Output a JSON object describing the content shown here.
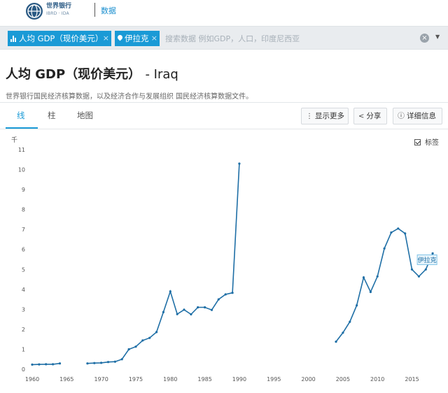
{
  "header": {
    "logo_text": "世界银行",
    "logo_sub": "IBRD · IDA",
    "nav_label": "数据"
  },
  "search": {
    "chips": [
      {
        "label": "人均 GDP（现价美元）",
        "remove": "×"
      },
      {
        "label": "伊拉克",
        "remove": "×"
      }
    ],
    "placeholder": "搜索数据 例如GDP，人口，印度尼西亚",
    "clear": "×",
    "caret": "▼"
  },
  "page": {
    "title": "人均 GDP（现价美元）",
    "country_suffix": "- Iraq",
    "subtitle": "世界银行国民经济核算数据，以及经济合作与发展组织 国民经济核算数据文件。"
  },
  "tabs": [
    {
      "label": "线",
      "active": true
    },
    {
      "label": "柱",
      "active": false
    },
    {
      "label": "地图",
      "active": false
    }
  ],
  "toolbar": {
    "more_icon": "⋮",
    "more_label": "显示更多",
    "share_icon": "<",
    "share_label": "分享",
    "info_icon": "ⓘ",
    "info_label": "详细信息"
  },
  "chart_controls": {
    "label_toggle": "标签",
    "label_checked": true
  },
  "colors": {
    "accent": "#1a9ad6",
    "series": "#1f6fa6"
  },
  "chart_data": {
    "type": "line",
    "unit_label": "千",
    "ylim": [
      0,
      11
    ],
    "yticks": [
      "0",
      "1",
      "2",
      "3",
      "4",
      "5",
      "6",
      "7",
      "8",
      "9",
      "10",
      "11"
    ],
    "xlim": [
      1960,
      2019
    ],
    "xticks": [
      "1960",
      "1965",
      "1970",
      "1975",
      "1980",
      "1985",
      "1990",
      "1995",
      "2000",
      "2005",
      "2010",
      "2015"
    ],
    "grid": false,
    "series": [
      {
        "name": "伊拉克",
        "segments": [
          [
            [
              1960,
              0.23
            ],
            [
              1961,
              0.24
            ],
            [
              1962,
              0.25
            ],
            [
              1963,
              0.25
            ],
            [
              1964,
              0.29
            ]
          ],
          [
            [
              1968,
              0.29
            ],
            [
              1969,
              0.31
            ],
            [
              1970,
              0.32
            ],
            [
              1971,
              0.36
            ],
            [
              1972,
              0.38
            ],
            [
              1973,
              0.5
            ],
            [
              1974,
              1.0
            ],
            [
              1975,
              1.13
            ],
            [
              1976,
              1.44
            ],
            [
              1977,
              1.57
            ],
            [
              1978,
              1.86
            ],
            [
              1979,
              2.86
            ],
            [
              1980,
              3.9
            ],
            [
              1981,
              2.76
            ],
            [
              1982,
              2.98
            ],
            [
              1983,
              2.75
            ],
            [
              1984,
              3.1
            ],
            [
              1985,
              3.1
            ],
            [
              1986,
              2.97
            ],
            [
              1987,
              3.5
            ],
            [
              1988,
              3.75
            ],
            [
              1989,
              3.83
            ],
            [
              1990,
              10.3
            ]
          ],
          [
            [
              2004,
              1.38
            ],
            [
              2005,
              1.83
            ],
            [
              2006,
              2.38
            ],
            [
              2007,
              3.2
            ],
            [
              2008,
              4.6
            ],
            [
              2009,
              3.87
            ],
            [
              2010,
              4.65
            ],
            [
              2011,
              6.05
            ],
            [
              2012,
              6.85
            ],
            [
              2013,
              7.05
            ],
            [
              2014,
              6.8
            ],
            [
              2015,
              5.0
            ],
            [
              2016,
              4.65
            ],
            [
              2017,
              5.0
            ],
            [
              2018,
              5.8
            ]
          ]
        ]
      }
    ]
  }
}
